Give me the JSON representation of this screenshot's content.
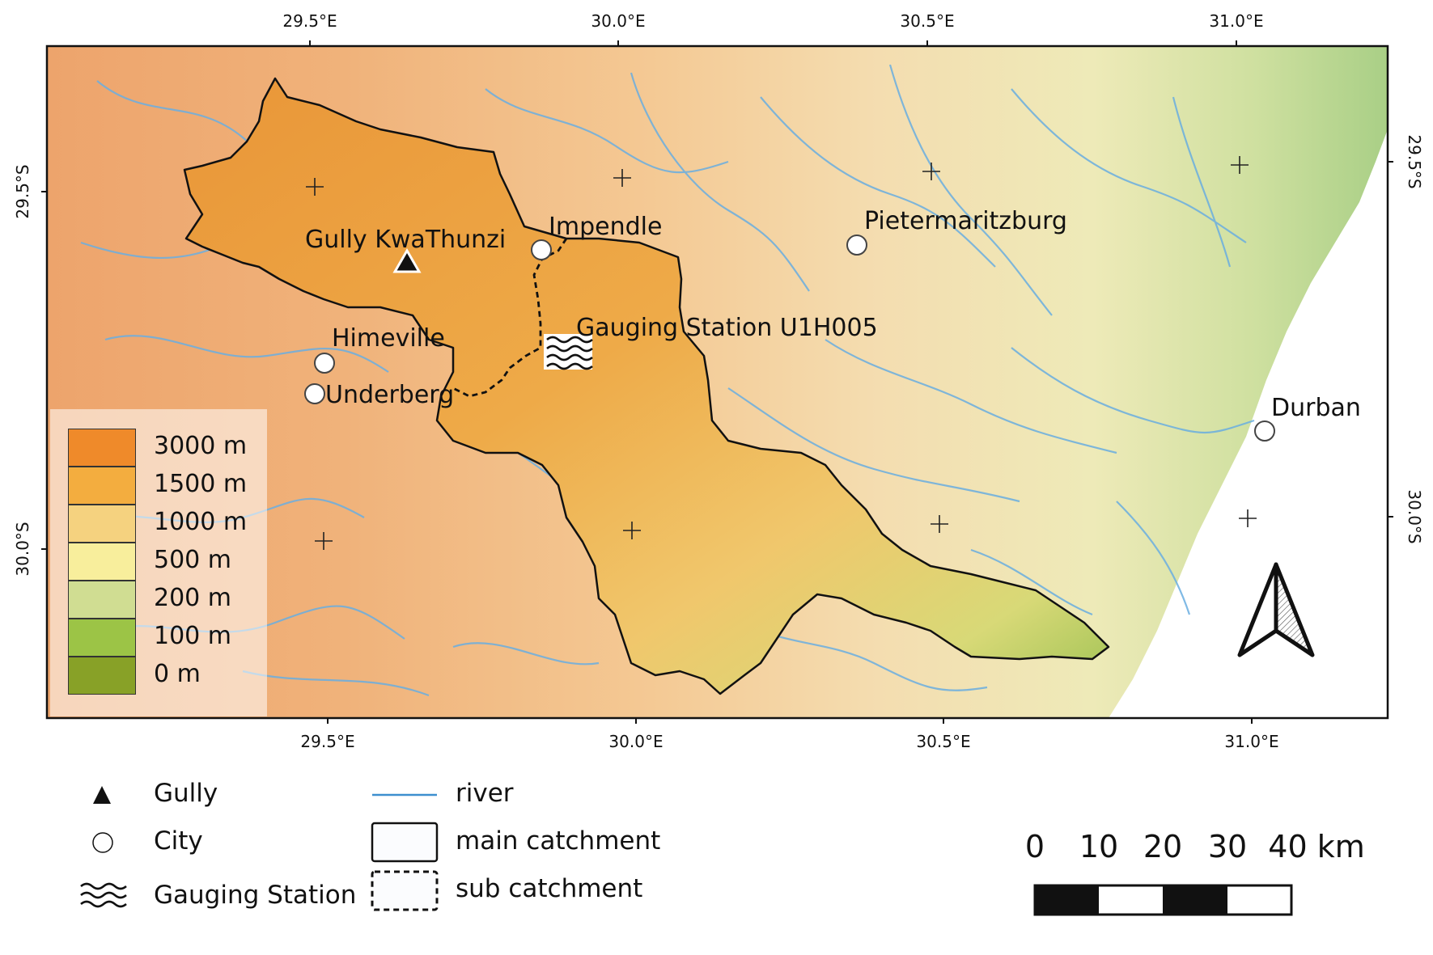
{
  "colors": {
    "frame": "#111111",
    "river": "#5a9fd2",
    "catchment_line": "#111111",
    "low_terrain": "#9cc46a",
    "mid_terrain": "#f4d27e",
    "high_terrain": "#f0a347",
    "sea": "#ffffff"
  },
  "map": {
    "axes": {
      "top": [
        "29.5°E",
        "30.0°E",
        "30.5°E",
        "31.0°E"
      ],
      "bottom": [
        "29.5°E",
        "30.0°E",
        "30.5°E",
        "31.0°E"
      ],
      "left": [
        "29.5°S",
        "30.0°S"
      ],
      "right": [
        "29.5°S",
        "30.0°S"
      ]
    },
    "places": {
      "gully": "Gully KwaThunzi",
      "impendle": "Impendle",
      "pietermaritzburg": "Pietermaritzburg",
      "gauging": "Gauging Station U1H005",
      "himeville": "Himeville",
      "underberg": "Underberg",
      "durban": "Durban"
    },
    "north_arrow_icon": "north-arrow-icon"
  },
  "elevation_legend": [
    {
      "label": "3000 m",
      "color": "#ef8a2a"
    },
    {
      "label": "1500 m",
      "color": "#f3ad3f"
    },
    {
      "label": "1000 m",
      "color": "#f5d27f"
    },
    {
      "label": "500 m",
      "color": "#f8ee9c"
    },
    {
      "label": "200 m",
      "color": "#d0dd92"
    },
    {
      "label": "100 m",
      "color": "#9cc446"
    },
    {
      "label": "0 m",
      "color": "#88a127"
    }
  ],
  "legend": {
    "gully": "Gully",
    "city": "City",
    "gauging": "Gauging Station",
    "river": "river",
    "main_catchment": "main catchment",
    "sub_catchment": "sub catchment"
  },
  "scale_bar": {
    "labels": [
      "0",
      "10",
      "20",
      "30",
      "40 km"
    ]
  }
}
